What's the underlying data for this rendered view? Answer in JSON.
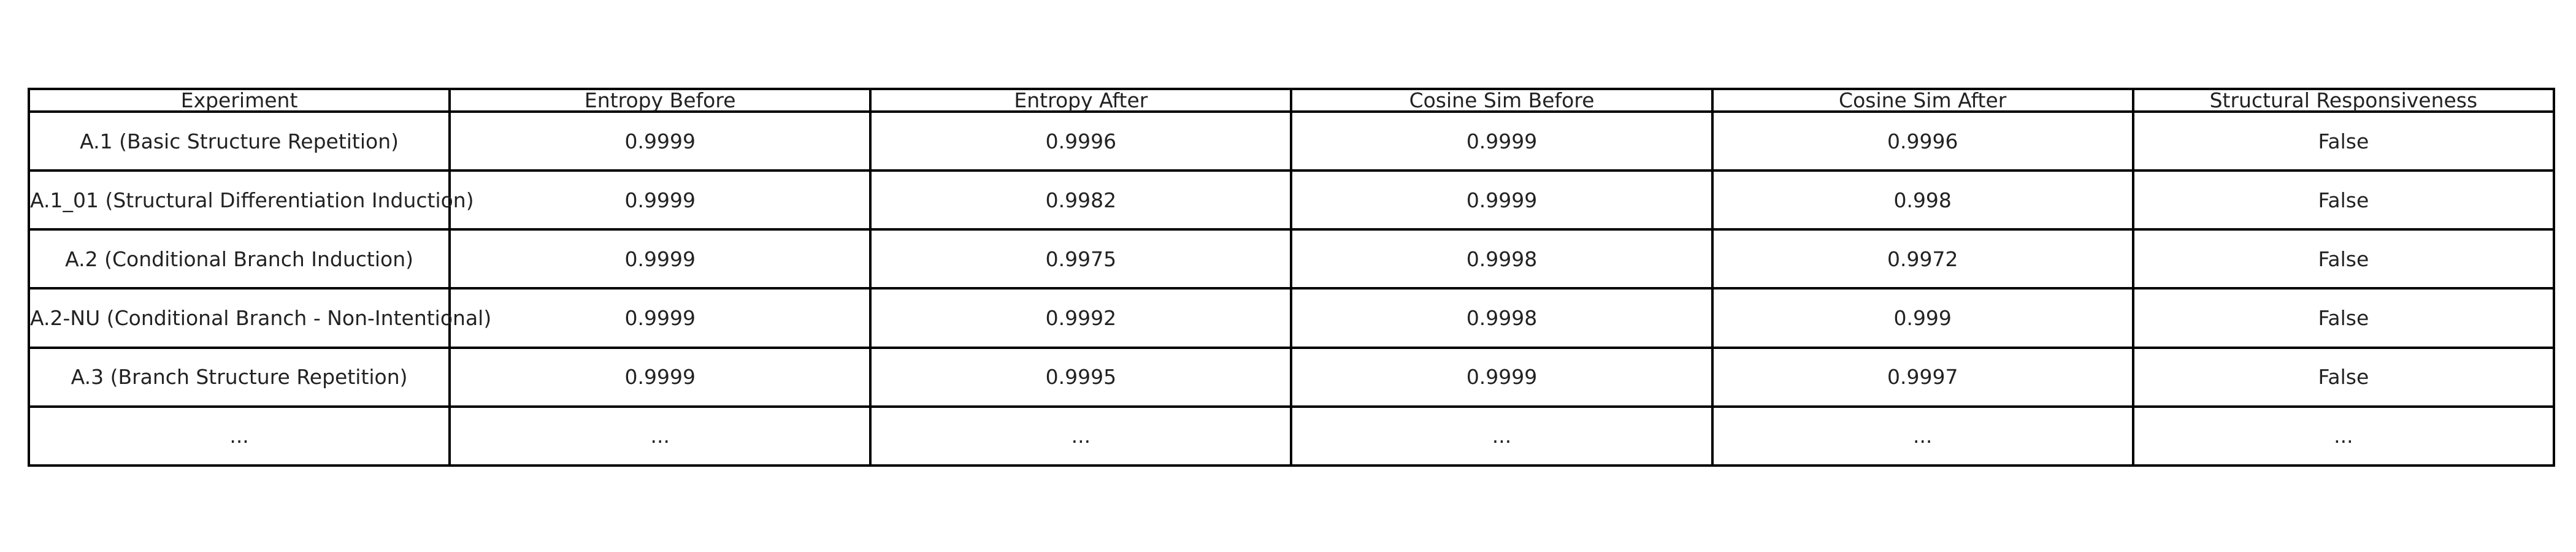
{
  "chart_data": {
    "type": "table",
    "columns": [
      "Experiment",
      "Entropy Before",
      "Entropy After",
      "Cosine Sim Before",
      "Cosine Sim After",
      "Structural Responsiveness"
    ],
    "rows": [
      [
        "A.1 (Basic Structure Repetition)",
        "0.9999",
        "0.9996",
        "0.9999",
        "0.9996",
        "False"
      ],
      [
        "A.1_01 (Structural Differentiation Induction)",
        "0.9999",
        "0.9982",
        "0.9999",
        "0.998",
        "False"
      ],
      [
        "A.2 (Conditional Branch Induction)",
        "0.9999",
        "0.9975",
        "0.9998",
        "0.9972",
        "False"
      ],
      [
        "A.2-NU (Conditional Branch - Non-Intentional)",
        "0.9999",
        "0.9992",
        "0.9998",
        "0.999",
        "False"
      ],
      [
        "A.3 (Branch Structure Repetition)",
        "0.9999",
        "0.9995",
        "0.9999",
        "0.9997",
        "False"
      ],
      [
        "...",
        "...",
        "...",
        "...",
        "...",
        "..."
      ]
    ]
  }
}
